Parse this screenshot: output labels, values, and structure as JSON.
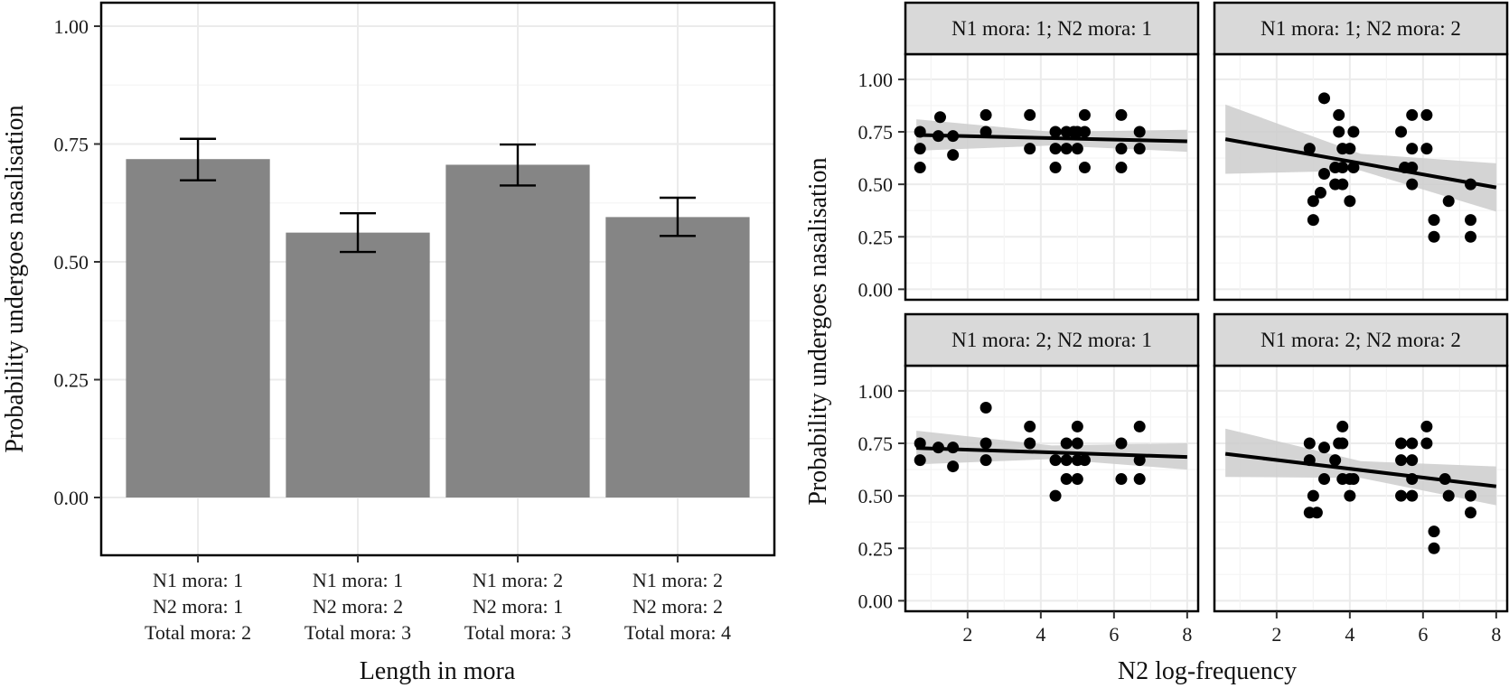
{
  "chart_data": [
    {
      "type": "bar",
      "title": "",
      "xlabel": "Length in mora",
      "ylabel": "Probability undergoes nasalisation",
      "ylim": [
        0,
        1.05
      ],
      "yticks": [
        "0.00",
        "0.25",
        "0.50",
        "0.75",
        "1.00"
      ],
      "categories": [
        [
          "N1 mora: 1",
          "N2 mora: 1",
          "Total mora: 2"
        ],
        [
          "N1 mora: 1",
          "N2 mora: 2",
          "Total mora: 3"
        ],
        [
          "N1 mora: 2",
          "N2 mora: 1",
          "Total mora: 3"
        ],
        [
          "N1 mora: 2",
          "N2 mora: 2",
          "Total mora: 4"
        ]
      ],
      "values": [
        0.718,
        0.562,
        0.706,
        0.595
      ],
      "error_low": [
        0.673,
        0.521,
        0.662,
        0.555
      ],
      "error_high": [
        0.761,
        0.603,
        0.749,
        0.636
      ],
      "bar_color": "#858585",
      "grid": true
    },
    {
      "type": "scatter",
      "title": "",
      "xlabel": "N2 log-frequency",
      "ylabel": "Probability undergoes nasalisation",
      "xlim": [
        0.3,
        8.3
      ],
      "ylim": [
        -0.05,
        1.12
      ],
      "xticks": [
        "2",
        "4",
        "6",
        "8"
      ],
      "yticks": [
        "0.00",
        "0.25",
        "0.50",
        "0.75",
        "1.00"
      ],
      "grid": true,
      "point_color": "#000000",
      "band_color": "#cccccc",
      "panels": [
        {
          "label": "N1 mora: 1; N2 mora: 1",
          "points": [
            [
              0.7,
              0.75
            ],
            [
              0.7,
              0.67
            ],
            [
              0.7,
              0.58
            ],
            [
              1.2,
              0.73
            ],
            [
              1.25,
              0.82
            ],
            [
              1.6,
              0.73
            ],
            [
              1.6,
              0.64
            ],
            [
              2.5,
              0.83
            ],
            [
              2.5,
              0.75
            ],
            [
              3.7,
              0.83
            ],
            [
              3.7,
              0.67
            ],
            [
              4.4,
              0.75
            ],
            [
              4.4,
              0.67
            ],
            [
              4.4,
              0.58
            ],
            [
              4.7,
              0.75
            ],
            [
              4.7,
              0.67
            ],
            [
              4.9,
              0.75
            ],
            [
              5.0,
              0.67
            ],
            [
              5.0,
              0.75
            ],
            [
              5.2,
              0.83
            ],
            [
              5.2,
              0.75
            ],
            [
              5.2,
              0.58
            ],
            [
              6.2,
              0.83
            ],
            [
              6.2,
              0.67
            ],
            [
              6.2,
              0.58
            ],
            [
              6.7,
              0.75
            ],
            [
              6.7,
              0.67
            ]
          ],
          "fit": {
            "x": [
              0.6,
              8.0
            ],
            "y": [
              0.735,
              0.705
            ]
          },
          "band": {
            "x": [
              0.6,
              4.3,
              8.0
            ],
            "lower": [
              0.66,
              0.685,
              0.655
            ],
            "upper": [
              0.81,
              0.75,
              0.76
            ]
          }
        },
        {
          "label": "N1 mora: 1; N2 mora: 2",
          "points": [
            [
              2.9,
              0.67
            ],
            [
              3.0,
              0.42
            ],
            [
              3.0,
              0.33
            ],
            [
              3.2,
              0.46
            ],
            [
              3.3,
              0.91
            ],
            [
              3.3,
              0.55
            ],
            [
              3.6,
              0.5
            ],
            [
              3.6,
              0.58
            ],
            [
              3.7,
              0.75
            ],
            [
              3.7,
              0.83
            ],
            [
              3.8,
              0.67
            ],
            [
              3.8,
              0.58
            ],
            [
              3.8,
              0.5
            ],
            [
              4.0,
              0.42
            ],
            [
              4.0,
              0.67
            ],
            [
              4.1,
              0.75
            ],
            [
              4.1,
              0.58
            ],
            [
              5.4,
              0.75
            ],
            [
              5.5,
              0.58
            ],
            [
              5.7,
              0.5
            ],
            [
              5.7,
              0.58
            ],
            [
              5.7,
              0.67
            ],
            [
              5.7,
              0.83
            ],
            [
              6.1,
              0.83
            ],
            [
              6.1,
              0.67
            ],
            [
              6.3,
              0.33
            ],
            [
              6.3,
              0.25
            ],
            [
              6.7,
              0.42
            ],
            [
              7.3,
              0.5
            ],
            [
              7.3,
              0.33
            ],
            [
              7.3,
              0.25
            ]
          ],
          "fit": {
            "x": [
              0.6,
              8.0
            ],
            "y": [
              0.715,
              0.485
            ]
          },
          "band": {
            "x": [
              0.6,
              4.3,
              8.0
            ],
            "lower": [
              0.55,
              0.565,
              0.37
            ],
            "upper": [
              0.88,
              0.645,
              0.6
            ]
          }
        },
        {
          "label": "N1 mora: 2; N2 mora: 1",
          "points": [
            [
              0.7,
              0.75
            ],
            [
              0.7,
              0.67
            ],
            [
              1.2,
              0.73
            ],
            [
              1.6,
              0.73
            ],
            [
              1.6,
              0.64
            ],
            [
              2.5,
              0.92
            ],
            [
              2.5,
              0.75
            ],
            [
              2.5,
              0.67
            ],
            [
              3.7,
              0.83
            ],
            [
              3.7,
              0.75
            ],
            [
              4.4,
              0.67
            ],
            [
              4.4,
              0.5
            ],
            [
              4.7,
              0.75
            ],
            [
              4.7,
              0.67
            ],
            [
              4.7,
              0.58
            ],
            [
              5.0,
              0.83
            ],
            [
              5.0,
              0.75
            ],
            [
              5.0,
              0.67
            ],
            [
              5.0,
              0.58
            ],
            [
              5.2,
              0.67
            ],
            [
              6.2,
              0.75
            ],
            [
              6.2,
              0.58
            ],
            [
              6.7,
              0.83
            ],
            [
              6.7,
              0.67
            ],
            [
              6.7,
              0.58
            ]
          ],
          "fit": {
            "x": [
              0.6,
              8.0
            ],
            "y": [
              0.728,
              0.685
            ]
          },
          "band": {
            "x": [
              0.6,
              4.3,
              8.0
            ],
            "lower": [
              0.65,
              0.675,
              0.625
            ],
            "upper": [
              0.81,
              0.74,
              0.75
            ]
          }
        },
        {
          "label": "N1 mora: 2; N2 mora: 2",
          "points": [
            [
              2.9,
              0.75
            ],
            [
              2.9,
              0.67
            ],
            [
              2.9,
              0.42
            ],
            [
              3.0,
              0.5
            ],
            [
              3.1,
              0.42
            ],
            [
              3.3,
              0.73
            ],
            [
              3.3,
              0.58
            ],
            [
              3.6,
              0.67
            ],
            [
              3.7,
              0.75
            ],
            [
              3.8,
              0.83
            ],
            [
              3.8,
              0.58
            ],
            [
              3.8,
              0.75
            ],
            [
              4.0,
              0.58
            ],
            [
              4.0,
              0.5
            ],
            [
              4.1,
              0.58
            ],
            [
              5.4,
              0.75
            ],
            [
              5.4,
              0.67
            ],
            [
              5.4,
              0.5
            ],
            [
              5.7,
              0.75
            ],
            [
              5.7,
              0.67
            ],
            [
              5.7,
              0.58
            ],
            [
              5.7,
              0.5
            ],
            [
              6.1,
              0.83
            ],
            [
              6.1,
              0.75
            ],
            [
              6.3,
              0.33
            ],
            [
              6.3,
              0.25
            ],
            [
              6.6,
              0.58
            ],
            [
              6.7,
              0.5
            ],
            [
              7.3,
              0.5
            ],
            [
              7.3,
              0.42
            ]
          ],
          "fit": {
            "x": [
              0.6,
              8.0
            ],
            "y": [
              0.7,
              0.545
            ]
          },
          "band": {
            "x": [
              0.6,
              4.3,
              8.0
            ],
            "lower": [
              0.59,
              0.585,
              0.455
            ],
            "upper": [
              0.82,
              0.665,
              0.64
            ]
          }
        }
      ]
    }
  ]
}
